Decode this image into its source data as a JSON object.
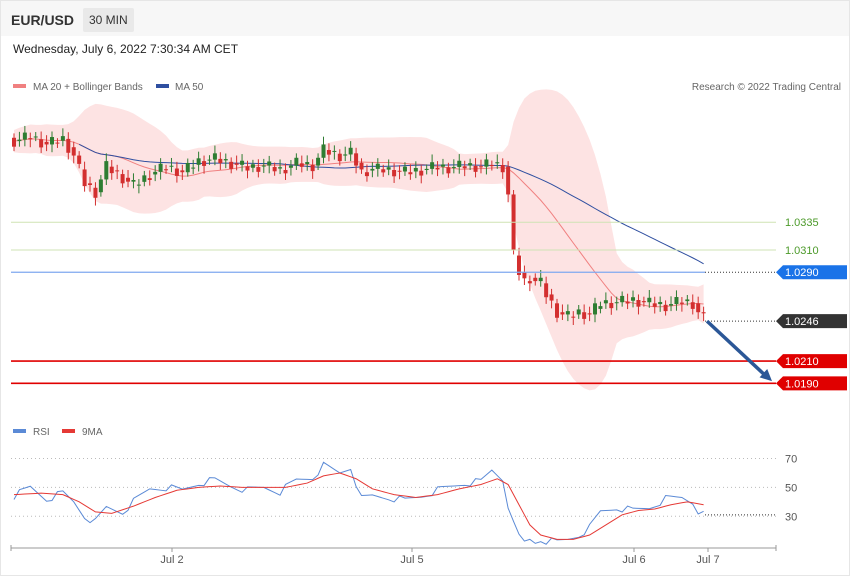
{
  "header": {
    "symbol": "EUR/USD",
    "timeframe": "30 MIN",
    "timestamp": "Wednesday, July 6, 2022 7:30:34 AM CET"
  },
  "copyright": "Research © 2022 Trading Central",
  "colors": {
    "up": "#2e7d32",
    "down": "#d32f2f",
    "ma20": "#f08080",
    "bands": "#fde3e3",
    "ma50": "#2f4fa0",
    "rsi": "#5b8ad6",
    "rsi_ma": "#e53935",
    "resistance": "#8bc34a",
    "pivot": "#1a73e8",
    "support": "#e00000",
    "current": "#333333",
    "arrow": "#2b5797"
  },
  "chart_data": [
    {
      "type": "candlestick",
      "legend": [
        {
          "name": "MA 20 + Bollinger Bands",
          "color": "#f08080"
        },
        {
          "name": "MA 50",
          "color": "#2f4fa0"
        }
      ],
      "x_ticks": [
        "Jul 2",
        "Jul 5",
        "Jul 6",
        "Jul 7"
      ],
      "ylim": [
        1.0175,
        1.0445
      ],
      "price_path": [
        [
          0,
          1.0408
        ],
        [
          3,
          1.0412
        ],
        [
          6,
          1.0405
        ],
        [
          9,
          1.041
        ],
        [
          11,
          1.0395
        ],
        [
          13,
          1.037
        ],
        [
          15,
          1.0362
        ],
        [
          17,
          1.0385
        ],
        [
          20,
          1.0375
        ],
        [
          22,
          1.0368
        ],
        [
          25,
          1.0378
        ],
        [
          28,
          1.0385
        ],
        [
          31,
          1.038
        ],
        [
          34,
          1.039
        ],
        [
          37,
          1.0392
        ],
        [
          40,
          1.0388
        ],
        [
          43,
          1.0384
        ],
        [
          46,
          1.0386
        ],
        [
          49,
          1.0382
        ],
        [
          52,
          1.0388
        ],
        [
          55,
          1.0386
        ],
        [
          57,
          1.04
        ],
        [
          60,
          1.0395
        ],
        [
          62,
          1.0397
        ],
        [
          64,
          1.038
        ],
        [
          66,
          1.0383
        ],
        [
          69,
          1.0382
        ],
        [
          72,
          1.038
        ],
        [
          75,
          1.0382
        ],
        [
          78,
          1.0385
        ],
        [
          80,
          1.0384
        ],
        [
          83,
          1.0386
        ],
        [
          86,
          1.0385
        ],
        [
          88,
          1.0388
        ],
        [
          90,
          1.0385
        ],
        [
          91,
          1.036
        ],
        [
          92,
          1.0305
        ],
        [
          93,
          1.029
        ],
        [
          94,
          1.0282
        ],
        [
          95,
          1.0285
        ],
        [
          96,
          1.0282
        ],
        [
          97,
          1.028
        ],
        [
          98,
          1.027
        ],
        [
          100,
          1.0254
        ],
        [
          102,
          1.025
        ],
        [
          104,
          1.0254
        ],
        [
          106,
          1.0252
        ],
        [
          108,
          1.0262
        ],
        [
          111,
          1.0263
        ],
        [
          114,
          1.0265
        ],
        [
          117,
          1.0262
        ],
        [
          120,
          1.026
        ],
        [
          123,
          1.0264
        ],
        [
          125,
          1.0262
        ],
        [
          126,
          1.0254
        ],
        [
          127,
          1.0248
        ]
      ],
      "levels": [
        {
          "value": 1.0335,
          "label": "1.0335",
          "kind": "resistance"
        },
        {
          "value": 1.031,
          "label": "1.0310",
          "kind": "resistance"
        },
        {
          "value": 1.029,
          "label": "1.0290",
          "kind": "pivot"
        },
        {
          "value": 1.0246,
          "label": "1.0246",
          "kind": "current"
        },
        {
          "value": 1.021,
          "label": "1.0210",
          "kind": "support"
        },
        {
          "value": 1.019,
          "label": "1.0190",
          "kind": "support"
        }
      ],
      "projection": {
        "from": 1.0246,
        "to": 1.0192
      }
    },
    {
      "type": "line",
      "legend": [
        {
          "name": "RSI",
          "color": "#5b8ad6"
        },
        {
          "name": "9MA",
          "color": "#e53935"
        }
      ],
      "y_ticks": [
        70,
        50,
        30
      ],
      "ylim": [
        8,
        78
      ],
      "rsi_path": [
        [
          0,
          44
        ],
        [
          3,
          50
        ],
        [
          6,
          42
        ],
        [
          9,
          46
        ],
        [
          11,
          40
        ],
        [
          13,
          30
        ],
        [
          15,
          26
        ],
        [
          17,
          36
        ],
        [
          20,
          33
        ],
        [
          22,
          40
        ],
        [
          25,
          49
        ],
        [
          28,
          50
        ],
        [
          31,
          48
        ],
        [
          34,
          53
        ],
        [
          37,
          55
        ],
        [
          40,
          51
        ],
        [
          43,
          48
        ],
        [
          46,
          50
        ],
        [
          49,
          47
        ],
        [
          52,
          55
        ],
        [
          55,
          57
        ],
        [
          57,
          65
        ],
        [
          60,
          60
        ],
        [
          62,
          64
        ],
        [
          64,
          42
        ],
        [
          66,
          44
        ],
        [
          69,
          43
        ],
        [
          72,
          41
        ],
        [
          75,
          44
        ],
        [
          78,
          48
        ],
        [
          80,
          50
        ],
        [
          83,
          53
        ],
        [
          86,
          54
        ],
        [
          88,
          62
        ],
        [
          90,
          56
        ],
        [
          91,
          38
        ],
        [
          92,
          24
        ],
        [
          93,
          16
        ],
        [
          94,
          12
        ],
        [
          95,
          14
        ],
        [
          96,
          12
        ],
        [
          97,
          14
        ],
        [
          98,
          13
        ],
        [
          100,
          12
        ],
        [
          102,
          14
        ],
        [
          104,
          17
        ],
        [
          106,
          22
        ],
        [
          108,
          33
        ],
        [
          111,
          36
        ],
        [
          114,
          34
        ],
        [
          117,
          36
        ],
        [
          120,
          42
        ],
        [
          123,
          43
        ],
        [
          125,
          40
        ],
        [
          126,
          34
        ],
        [
          127,
          31
        ]
      ],
      "rsi_ma_path": [
        [
          0,
          45
        ],
        [
          5,
          46
        ],
        [
          9,
          45
        ],
        [
          12,
          40
        ],
        [
          15,
          33
        ],
        [
          18,
          32
        ],
        [
          22,
          37
        ],
        [
          26,
          43
        ],
        [
          30,
          48
        ],
        [
          34,
          50
        ],
        [
          38,
          51
        ],
        [
          42,
          50
        ],
        [
          46,
          50
        ],
        [
          50,
          50
        ],
        [
          54,
          53
        ],
        [
          57,
          58
        ],
        [
          60,
          60
        ],
        [
          63,
          56
        ],
        [
          66,
          49
        ],
        [
          70,
          45
        ],
        [
          74,
          43
        ],
        [
          78,
          45
        ],
        [
          82,
          49
        ],
        [
          86,
          52
        ],
        [
          89,
          56
        ],
        [
          91,
          52
        ],
        [
          93,
          38
        ],
        [
          95,
          24
        ],
        [
          97,
          17
        ],
        [
          100,
          14
        ],
        [
          103,
          14
        ],
        [
          106,
          17
        ],
        [
          109,
          24
        ],
        [
          112,
          31
        ],
        [
          115,
          34
        ],
        [
          118,
          35
        ],
        [
          121,
          38
        ],
        [
          124,
          40
        ],
        [
          127,
          38
        ]
      ]
    }
  ]
}
